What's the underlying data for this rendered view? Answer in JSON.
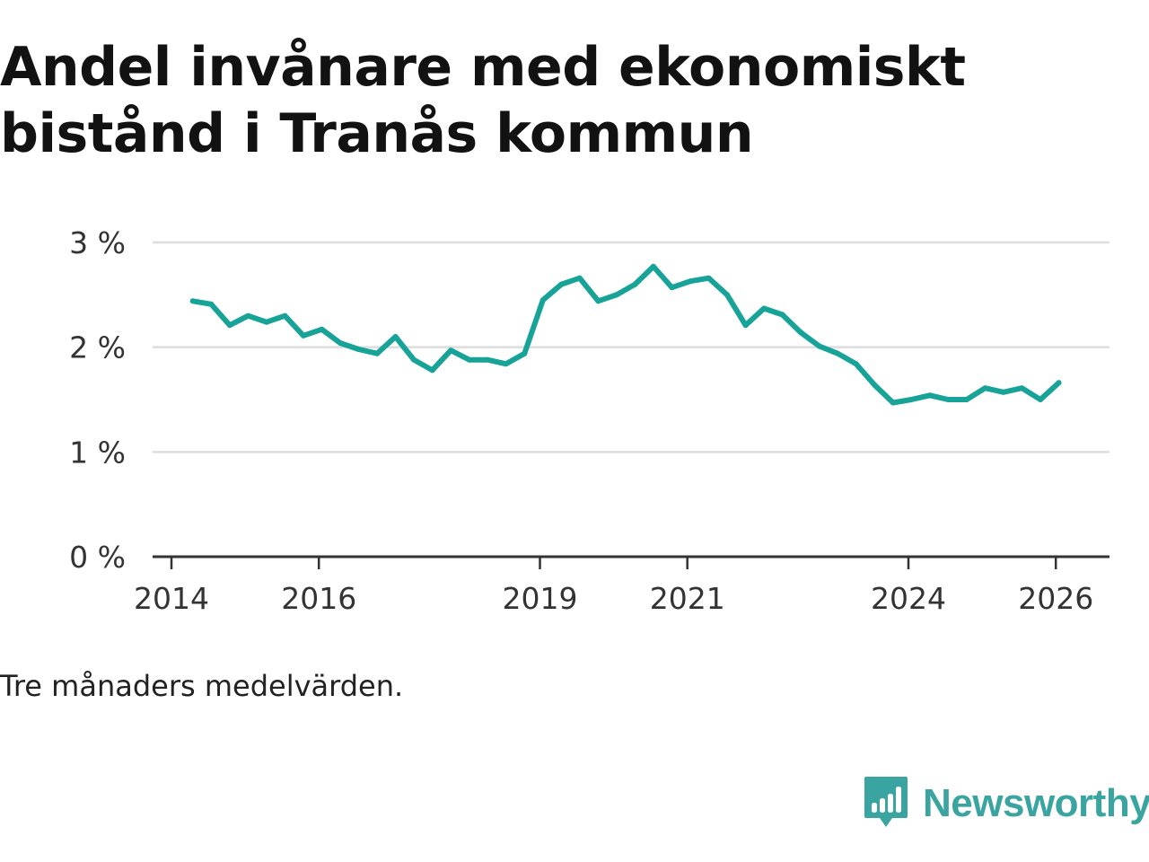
{
  "title": "Andel invånare med ekonomiskt bistånd i Tranås kommun",
  "note": "Tre månaders medelvärden.",
  "brand": {
    "name": "Newsworthy",
    "logo_icon": "newsworthy-chart-bubble-icon"
  },
  "colors": {
    "line": "#17a398",
    "grid": "#dddddd",
    "axis": "#333333",
    "brand": "#3aa5a0"
  },
  "chart_data": {
    "type": "line",
    "title": "Andel invånare med ekonomiskt bistånd i Tranås kommun",
    "xlabel": "",
    "ylabel": "",
    "x_range": [
      2014,
      2026.5
    ],
    "ylim": [
      0,
      3
    ],
    "y_ticks": [
      {
        "value": 0,
        "label": "0 %"
      },
      {
        "value": 1,
        "label": "1 %"
      },
      {
        "value": 2,
        "label": "2 %"
      },
      {
        "value": 3,
        "label": "3 %"
      }
    ],
    "x_ticks": [
      {
        "value": 2014,
        "label": "2014"
      },
      {
        "value": 2016,
        "label": "2016"
      },
      {
        "value": 2019,
        "label": "2019"
      },
      {
        "value": 2021,
        "label": "2021"
      },
      {
        "value": 2024,
        "label": "2024"
      },
      {
        "value": 2026,
        "label": "2026"
      }
    ],
    "grid": true,
    "series": [
      {
        "name": "Andel invånare med ekonomiskt bistånd",
        "points": [
          [
            2014.29,
            2.44
          ],
          [
            2014.54,
            2.41
          ],
          [
            2014.79,
            2.21
          ],
          [
            2015.04,
            2.3
          ],
          [
            2015.29,
            2.24
          ],
          [
            2015.54,
            2.3
          ],
          [
            2015.79,
            2.11
          ],
          [
            2016.04,
            2.17
          ],
          [
            2016.29,
            2.04
          ],
          [
            2016.54,
            1.98
          ],
          [
            2016.79,
            1.94
          ],
          [
            2017.04,
            2.1
          ],
          [
            2017.29,
            1.88
          ],
          [
            2017.54,
            1.78
          ],
          [
            2017.79,
            1.97
          ],
          [
            2018.04,
            1.88
          ],
          [
            2018.29,
            1.88
          ],
          [
            2018.54,
            1.84
          ],
          [
            2018.79,
            1.94
          ],
          [
            2019.04,
            2.45
          ],
          [
            2019.29,
            2.6
          ],
          [
            2019.54,
            2.66
          ],
          [
            2019.79,
            2.44
          ],
          [
            2020.04,
            2.5
          ],
          [
            2020.29,
            2.6
          ],
          [
            2020.54,
            2.77
          ],
          [
            2020.79,
            2.57
          ],
          [
            2021.04,
            2.63
          ],
          [
            2021.29,
            2.66
          ],
          [
            2021.54,
            2.5
          ],
          [
            2021.79,
            2.21
          ],
          [
            2022.04,
            2.37
          ],
          [
            2022.29,
            2.31
          ],
          [
            2022.54,
            2.14
          ],
          [
            2022.79,
            2.01
          ],
          [
            2023.04,
            1.94
          ],
          [
            2023.29,
            1.84
          ],
          [
            2023.54,
            1.64
          ],
          [
            2023.79,
            1.47
          ],
          [
            2024.04,
            1.5
          ],
          [
            2024.29,
            1.54
          ],
          [
            2024.54,
            1.5
          ],
          [
            2024.79,
            1.5
          ],
          [
            2025.04,
            1.61
          ],
          [
            2025.29,
            1.57
          ],
          [
            2025.54,
            1.61
          ],
          [
            2025.79,
            1.5
          ],
          [
            2026.04,
            1.66
          ]
        ]
      }
    ]
  }
}
